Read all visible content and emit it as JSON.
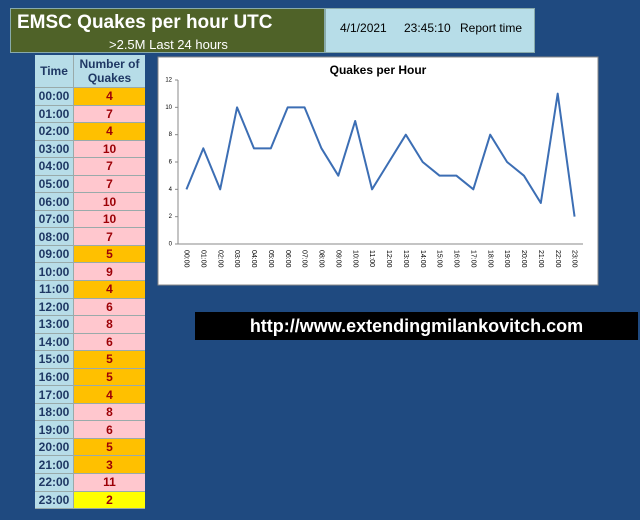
{
  "header": {
    "title": "EMSC Quakes per hour UTC",
    "subtitle": ">2.5M Last 24 hours"
  },
  "report": {
    "date": "4/1/2021",
    "time": "23:45:10",
    "label": "Report time"
  },
  "table": {
    "columns": [
      "Time",
      "Number of Quakes"
    ],
    "rows": [
      [
        "00:00",
        "4"
      ],
      [
        "01:00",
        "7"
      ],
      [
        "02:00",
        "4"
      ],
      [
        "03:00",
        "10"
      ],
      [
        "04:00",
        "7"
      ],
      [
        "05:00",
        "7"
      ],
      [
        "06:00",
        "10"
      ],
      [
        "07:00",
        "10"
      ],
      [
        "08:00",
        "7"
      ],
      [
        "09:00",
        "5"
      ],
      [
        "10:00",
        "9"
      ],
      [
        "11:00",
        "4"
      ],
      [
        "12:00",
        "6"
      ],
      [
        "13:00",
        "8"
      ],
      [
        "14:00",
        "6"
      ],
      [
        "15:00",
        "5"
      ],
      [
        "16:00",
        "5"
      ],
      [
        "17:00",
        "4"
      ],
      [
        "18:00",
        "8"
      ],
      [
        "19:00",
        "6"
      ],
      [
        "20:00",
        "5"
      ],
      [
        "21:00",
        "3"
      ],
      [
        "22:00",
        "11"
      ],
      [
        "23:00",
        "2"
      ]
    ],
    "row_colors": [
      "#ffc000",
      "#ffc7ce",
      "#ffc000",
      "#ffc7ce",
      "#ffc7ce",
      "#ffc7ce",
      "#ffc7ce",
      "#ffc7ce",
      "#ffc7ce",
      "#ffc000",
      "#ffc7ce",
      "#ffc000",
      "#ffc7ce",
      "#ffc7ce",
      "#ffc7ce",
      "#ffc000",
      "#ffc000",
      "#ffc000",
      "#ffc7ce",
      "#ffc7ce",
      "#ffc000",
      "#ffc000",
      "#ffc7ce",
      "#ffff00"
    ]
  },
  "url": "http://www.extendingmilankovitch.com",
  "chart_data": {
    "type": "line",
    "title": "Quakes per Hour",
    "categories": [
      "00:00",
      "01:00",
      "02:00",
      "03:00",
      "04:00",
      "05:00",
      "06:00",
      "07:00",
      "08:00",
      "09:00",
      "10:00",
      "11:00",
      "12:00",
      "13:00",
      "14:00",
      "15:00",
      "16:00",
      "17:00",
      "18:00",
      "19:00",
      "20:00",
      "21:00",
      "22:00",
      "23:00"
    ],
    "series": [
      {
        "name": "Quakes",
        "color": "#3c6eb4",
        "values": [
          4,
          7,
          4,
          10,
          7,
          7,
          10,
          10,
          7,
          5,
          9,
          4,
          6,
          8,
          6,
          5,
          5,
          4,
          8,
          6,
          5,
          3,
          11,
          2
        ]
      }
    ],
    "ylim": [
      0,
      12
    ],
    "yticks": [
      0,
      2,
      4,
      6,
      8,
      10,
      12
    ]
  }
}
